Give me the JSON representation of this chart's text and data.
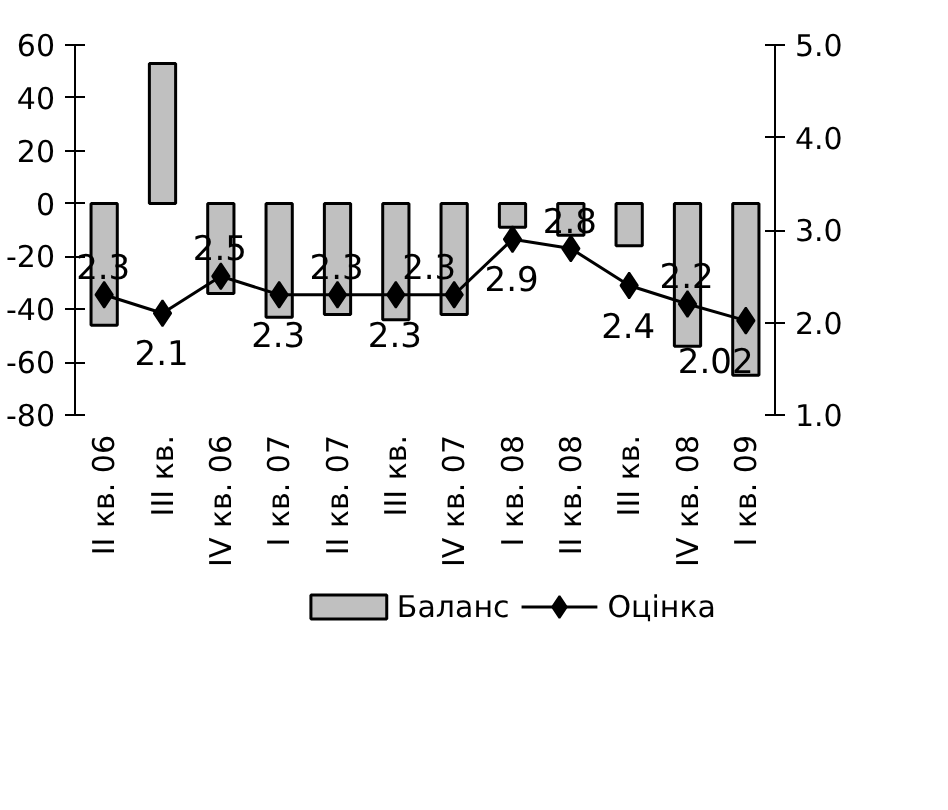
{
  "chart_data": {
    "type": "bar",
    "categories": [
      "II кв. 06",
      "III кв.",
      "IV кв. 06",
      "I кв. 07",
      "II кв. 07",
      "III кв.",
      "IV кв. 07",
      "I кв. 08",
      "II кв. 08",
      "III кв.",
      "IV кв. 08",
      "I кв. 09"
    ],
    "series": [
      {
        "name": "Баланс",
        "type": "bar",
        "color": "#c0c0c0",
        "values": [
          -46,
          53,
          -34,
          -43,
          -42,
          -44,
          -42,
          -9,
          -12,
          -16,
          -54,
          -65
        ]
      },
      {
        "name": "Оцінка",
        "type": "line",
        "axis": "y2",
        "color": "#000000",
        "marker": "diamond",
        "values": [
          2.3,
          2.1,
          2.5,
          2.3,
          2.3,
          2.3,
          2.3,
          2.9,
          2.8,
          2.4,
          2.2,
          2.02
        ],
        "value_labels": [
          "2.3",
          "2.1",
          "2.5",
          "2.3",
          "2.3",
          "2.3",
          "2.3",
          "2.9",
          "2.8",
          "2.4",
          "2.2",
          "2.02"
        ]
      }
    ],
    "ylim": [
      -80,
      60
    ],
    "yticks": [
      -80,
      -60,
      -40,
      -20,
      0,
      20,
      40,
      60
    ],
    "y2lim": [
      1.0,
      5.0
    ],
    "y2ticks": [
      {
        "value": 1,
        "label": "1.0"
      },
      {
        "value": 2,
        "label": "2.0"
      },
      {
        "value": 3,
        "label": "3.0"
      },
      {
        "value": 4,
        "label": "4.0"
      },
      {
        "value": 5,
        "label": "5.0"
      }
    ],
    "grid": false,
    "legend": "bottom"
  }
}
